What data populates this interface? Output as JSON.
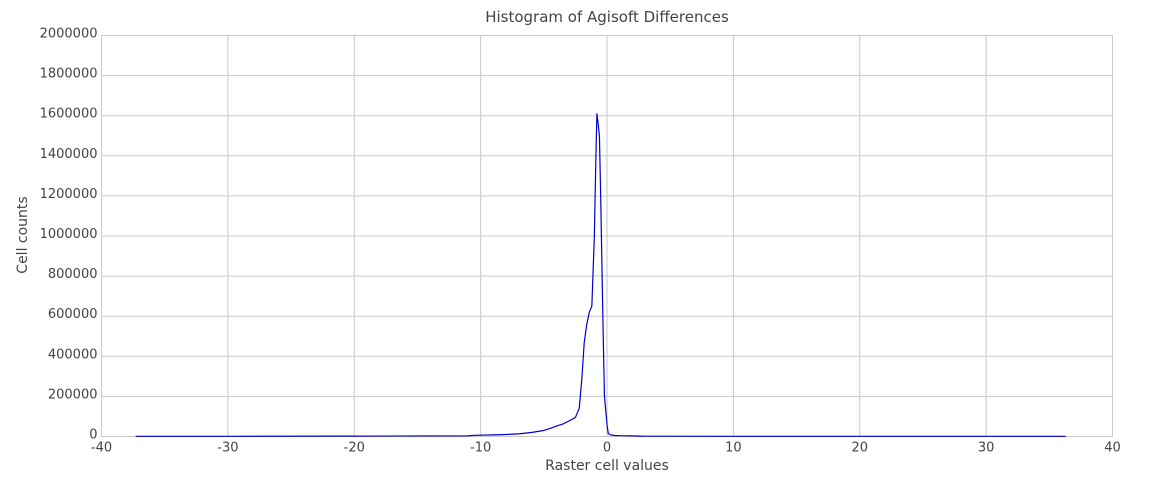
{
  "chart_data": {
    "type": "line",
    "title": "Histogram of Agisoft Differences",
    "xlabel": "Raster cell values",
    "ylabel": "Cell counts",
    "xlim": [
      -40,
      40
    ],
    "ylim": [
      0,
      2000000
    ],
    "xticks": [
      -40,
      -30,
      -20,
      -10,
      0,
      10,
      20,
      30,
      40
    ],
    "yticks": [
      0,
      200000,
      400000,
      600000,
      800000,
      1000000,
      1200000,
      1400000,
      1600000,
      1800000,
      2000000
    ],
    "grid": true,
    "colors": {
      "series": "#0000cc",
      "grid": "#c8c8c8",
      "text": "#444444"
    },
    "series": [
      {
        "x": [
          -37.3,
          -30,
          -20,
          -11,
          -10.5,
          -9,
          -8,
          -7,
          -6,
          -5,
          -4.5,
          -4,
          -3.5,
          -3,
          -2.5,
          -2.2,
          -2,
          -1.8,
          -1.6,
          -1.4,
          -1.2,
          -1.0,
          -0.9,
          -0.8,
          -0.7,
          -0.6,
          -0.5,
          -0.4,
          -0.3,
          -0.2,
          0,
          0.1,
          0.3,
          0.6,
          1,
          2,
          2.5,
          3,
          10,
          20,
          30,
          36.3
        ],
        "y": [
          1000,
          1000,
          2000,
          3000,
          6000,
          8000,
          10000,
          13000,
          20000,
          30000,
          40000,
          52000,
          62000,
          78000,
          95000,
          140000,
          280000,
          470000,
          560000,
          620000,
          650000,
          1000000,
          1330000,
          1610000,
          1560000,
          1500000,
          1200000,
          850000,
          500000,
          200000,
          60000,
          15000,
          8000,
          5000,
          4000,
          3000,
          2000,
          1500,
          1000,
          1000,
          1000,
          1000
        ]
      }
    ]
  }
}
